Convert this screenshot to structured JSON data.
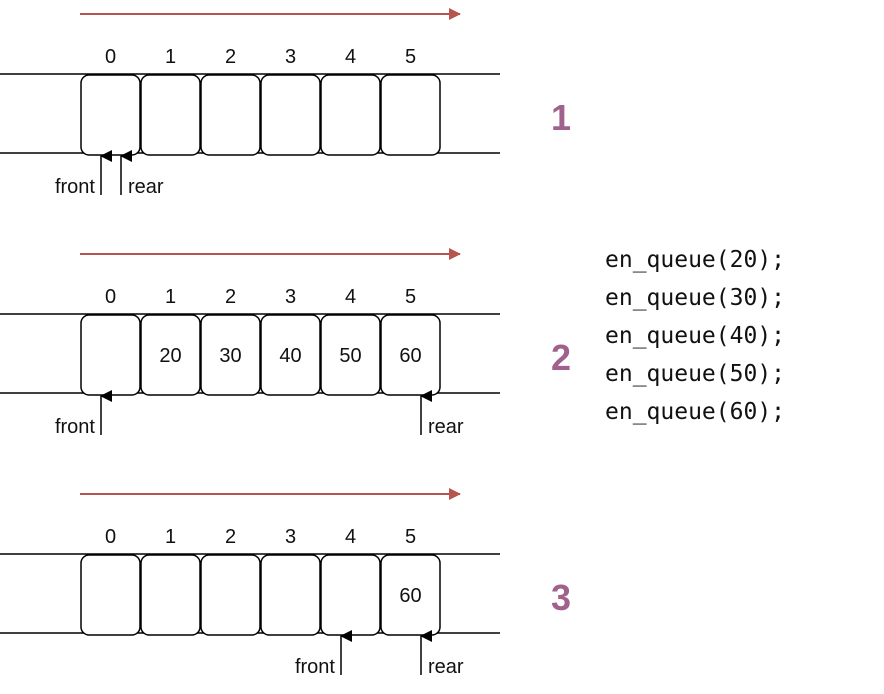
{
  "colors": {
    "direction_arrow": "#B85450",
    "step_number": "#A0628C",
    "stroke": "#000000"
  },
  "stages": [
    {
      "step": "1",
      "indices": [
        "0",
        "1",
        "2",
        "3",
        "4",
        "5"
      ],
      "cells": [
        "",
        "",
        "",
        "",
        "",
        ""
      ],
      "front_label": "front",
      "rear_label": "rear",
      "front_index": 0,
      "rear_index": 0,
      "code": []
    },
    {
      "step": "2",
      "indices": [
        "0",
        "1",
        "2",
        "3",
        "4",
        "5"
      ],
      "cells": [
        "",
        "20",
        "30",
        "40",
        "50",
        "60"
      ],
      "front_label": "front",
      "rear_label": "rear",
      "front_index": 0,
      "rear_index": 5,
      "code": [
        "en_queue(20);",
        "en_queue(30);",
        "en_queue(40);",
        "en_queue(50);",
        "en_queue(60);"
      ]
    },
    {
      "step": "3",
      "indices": [
        "0",
        "1",
        "2",
        "3",
        "4",
        "5"
      ],
      "cells": [
        "",
        "",
        "",
        "",
        "",
        "60"
      ],
      "front_label": "front",
      "rear_label": "rear",
      "front_index": 4,
      "rear_index": 5,
      "code": []
    }
  ]
}
